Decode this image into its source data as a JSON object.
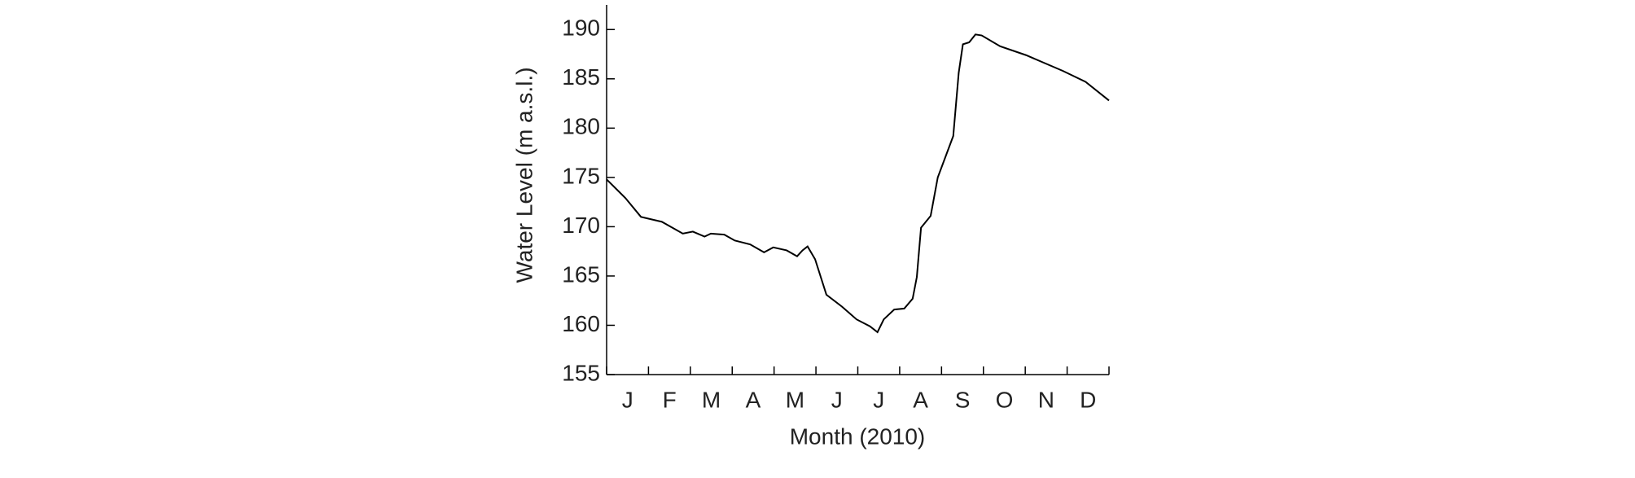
{
  "chart_data": {
    "type": "line",
    "xlabel": "Month (2010)",
    "ylabel": "Water Level (m a.s.l.)",
    "categories": [
      "J",
      "F",
      "M",
      "A",
      "M",
      "J",
      "J",
      "A",
      "S",
      "O",
      "N",
      "D"
    ],
    "xlim": [
      0,
      12
    ],
    "xticks": [
      0,
      1,
      2,
      3,
      4,
      5,
      6,
      7,
      8,
      9,
      10,
      11,
      12
    ],
    "ylim": [
      155,
      192.5
    ],
    "yticks": [
      155,
      160,
      165,
      170,
      175,
      180,
      185,
      190
    ],
    "grid": false,
    "series": [
      {
        "color": "#000000",
        "x": [
          0,
          0.45,
          0.82,
          1.32,
          1.82,
          2.06,
          2.34,
          2.49,
          2.81,
          3.06,
          3.43,
          3.76,
          3.98,
          4.3,
          4.55,
          4.68,
          4.8,
          4.98,
          5.25,
          5.62,
          5.97,
          6.29,
          6.47,
          6.62,
          6.87,
          7.11,
          7.31,
          7.41,
          7.51,
          7.74,
          7.91,
          8.28,
          8.41,
          8.51,
          8.66,
          8.81,
          8.96,
          9.4,
          10.02,
          10.9,
          11.44,
          12
        ],
        "values": [
          174.8,
          172.9,
          171.0,
          170.5,
          169.3,
          169.5,
          169.0,
          169.3,
          169.2,
          168.6,
          168.2,
          167.4,
          167.9,
          167.6,
          167.0,
          167.6,
          168.0,
          166.7,
          163.1,
          161.9,
          160.6,
          159.9,
          159.3,
          160.6,
          161.6,
          161.7,
          162.7,
          164.9,
          169.9,
          171.1,
          175.0,
          179.2,
          185.6,
          188.5,
          188.7,
          189.5,
          189.4,
          188.3,
          187.4,
          185.8,
          184.7,
          182.8
        ]
      }
    ]
  }
}
